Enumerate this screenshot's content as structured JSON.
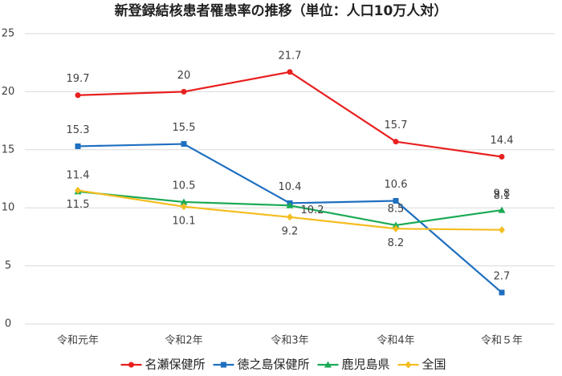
{
  "chart_data": {
    "type": "line",
    "title": "新登録結核患者罹患率の推移（単位：人口10万人対）",
    "categories": [
      "令和元年",
      "令和2年",
      "令和3年",
      "令和4年",
      "令和５年"
    ],
    "series": [
      {
        "name": "名瀬保健所",
        "color": "#e8201f",
        "marker": "circle",
        "values": [
          19.7,
          20,
          21.7,
          15.7,
          14.4
        ]
      },
      {
        "name": "徳之島保健所",
        "color": "#1f6fc0",
        "marker": "square",
        "values": [
          15.3,
          15.5,
          10.4,
          10.6,
          2.7
        ]
      },
      {
        "name": "鹿児島県",
        "color": "#1aaa55",
        "marker": "triangle",
        "values": [
          11.4,
          10.5,
          10.2,
          8.5,
          9.8
        ]
      },
      {
        "name": "全国",
        "color": "#f5bd1f",
        "marker": "diamond",
        "values": [
          11.5,
          10.1,
          9.2,
          8.2,
          8.1
        ]
      }
    ],
    "ylim": [
      0,
      25
    ],
    "yticks": [
      0,
      5,
      10,
      15,
      20,
      25
    ],
    "grid": true,
    "legend": "bottom"
  }
}
